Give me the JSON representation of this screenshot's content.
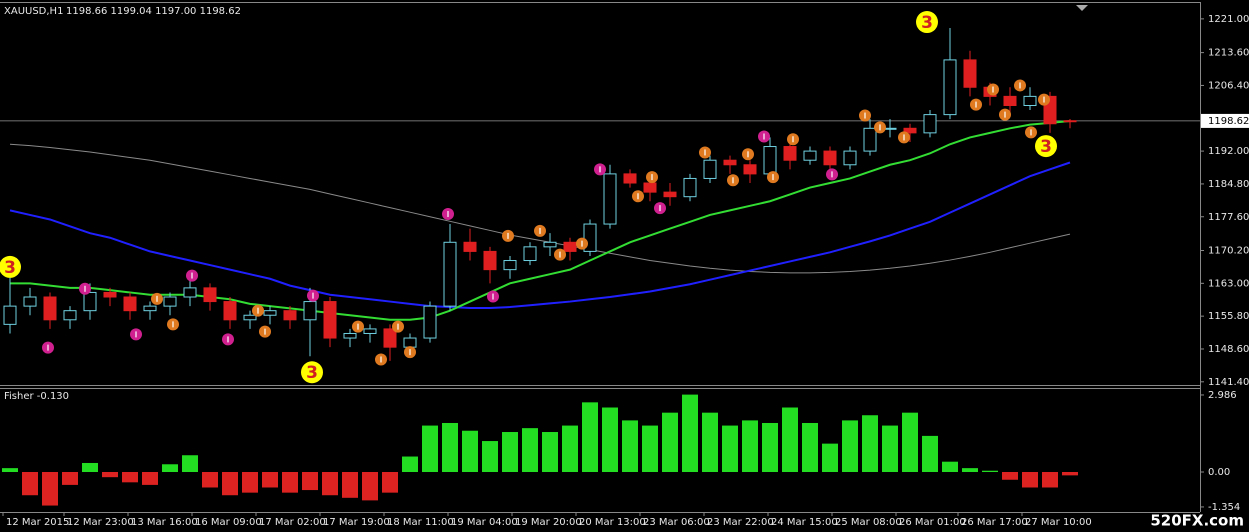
{
  "chart_data": [
    {
      "type": "candlestick",
      "symbol": "XAUUSD,H1",
      "ohlc_label": "1198.66 1199.04 1197.00 1198.62",
      "current_price": 1198.62,
      "up_color": "#6fd0e0",
      "down_color": "#e02020",
      "xlim": [
        -0.5,
        59.5
      ],
      "xticks": [
        {
          "value": -0.35,
          "label": "12 Mar 2015"
        },
        {
          "value": 2.7,
          "label": "12 Mar 23:00"
        },
        {
          "value": 5.9,
          "label": "13 Mar 16:00"
        },
        {
          "value": 9.1,
          "label": "16 Mar 09:00"
        },
        {
          "value": 12.3,
          "label": "17 Mar 02:00"
        },
        {
          "value": 15.5,
          "label": "17 Mar 19:00"
        },
        {
          "value": 18.7,
          "label": "18 Mar 11:00"
        },
        {
          "value": 21.9,
          "label": "19 Mar 04:00"
        },
        {
          "value": 25.1,
          "label": "19 Mar 20:00"
        },
        {
          "value": 28.3,
          "label": "20 Mar 13:00"
        },
        {
          "value": 31.5,
          "label": "23 Mar 06:00"
        },
        {
          "value": 34.7,
          "label": "23 Mar 22:00"
        },
        {
          "value": 37.9,
          "label": "24 Mar 15:00"
        },
        {
          "value": 41.1,
          "label": "25 Mar 08:00"
        },
        {
          "value": 44.3,
          "label": "26 Mar 01:00"
        },
        {
          "value": 47.4,
          "label": "26 Mar 17:00"
        },
        {
          "value": 50.6,
          "label": "27 Mar 10:00"
        }
      ],
      "ylim": [
        1140.7,
        1224.7
      ],
      "yticks": [
        {
          "value": 1221,
          "label": "1221.00"
        },
        {
          "value": 1213.6,
          "label": "1213.60"
        },
        {
          "value": 1206.4,
          "label": "1206.40"
        },
        {
          "value": 1192,
          "label": "1192.00"
        },
        {
          "value": 1184.8,
          "label": "1184.80"
        },
        {
          "value": 1177.6,
          "label": "1177.60"
        },
        {
          "value": 1170.2,
          "label": "1170.20"
        },
        {
          "value": 1163,
          "label": "1163.00"
        },
        {
          "value": 1155.8,
          "label": "1155.80"
        },
        {
          "value": 1148.6,
          "label": "1148.60"
        },
        {
          "value": 1141.4,
          "label": "1141.40"
        }
      ],
      "open": [
        1154,
        1158,
        1160,
        1155,
        1157,
        1161,
        1160,
        1157,
        1158,
        1160,
        1162,
        1159,
        1155,
        1156,
        1157,
        1155,
        1159,
        1151,
        1152,
        1153,
        1149,
        1151,
        1158,
        1172,
        1170,
        1166,
        1168,
        1171,
        1172,
        1170,
        1176,
        1187,
        1185,
        1183,
        1182,
        1186,
        1190,
        1189,
        1187,
        1193,
        1190,
        1192,
        1189,
        1192,
        1197,
        1197,
        1196,
        1200,
        1212,
        1206,
        1204,
        1202,
        1204,
        1198.66
      ],
      "high": [
        1165,
        1162,
        1161,
        1158,
        1163,
        1162,
        1161,
        1159,
        1161,
        1164,
        1163,
        1160,
        1157,
        1158,
        1158,
        1162,
        1160,
        1153,
        1154,
        1154,
        1152,
        1159,
        1176,
        1175,
        1171,
        1169,
        1172,
        1174,
        1173,
        1177,
        1189,
        1188,
        1186,
        1185,
        1187,
        1191,
        1191,
        1190,
        1195,
        1194,
        1193,
        1193,
        1193,
        1199,
        1199,
        1198,
        1201,
        1219,
        1214,
        1207,
        1206,
        1206,
        1205,
        1199.04
      ],
      "low": [
        1152,
        1156,
        1153,
        1153,
        1155,
        1158,
        1155,
        1155,
        1156,
        1158,
        1157,
        1153,
        1153,
        1154,
        1153,
        1147,
        1149,
        1149,
        1150,
        1146,
        1147,
        1150,
        1157,
        1168,
        1163,
        1164,
        1167,
        1169,
        1168,
        1169,
        1175,
        1184,
        1181,
        1180,
        1181,
        1185,
        1187,
        1185,
        1186,
        1188,
        1189,
        1187,
        1188,
        1191,
        1195,
        1194,
        1195,
        1199,
        1204,
        1202,
        1200,
        1201,
        1196,
        1197
      ],
      "close": [
        1158,
        1160,
        1155,
        1157,
        1161,
        1160,
        1157,
        1158,
        1160,
        1162,
        1159,
        1155,
        1156,
        1157,
        1155,
        1159,
        1151,
        1152,
        1153,
        1149,
        1151,
        1158,
        1172,
        1170,
        1166,
        1168,
        1171,
        1172,
        1170,
        1176,
        1187,
        1185,
        1183,
        1182,
        1186,
        1190,
        1189,
        1187,
        1193,
        1190,
        1192,
        1189,
        1192,
        1197,
        1197,
        1196,
        1200,
        1212,
        1206,
        1204,
        1202,
        1204,
        1198,
        1198.62
      ],
      "lines": [
        {
          "color": "#8a8a8a",
          "values": [
            1193.5,
            1193.2,
            1192.8,
            1192.3,
            1191.8,
            1191.2,
            1190.6,
            1190,
            1189.2,
            1188.4,
            1187.6,
            1186.8,
            1186,
            1185.2,
            1184.4,
            1183.6,
            1182.6,
            1181.6,
            1180.6,
            1179.6,
            1178.6,
            1177.6,
            1176.6,
            1175.6,
            1174.6,
            1173.6,
            1172.8,
            1172,
            1171.2,
            1170.4,
            1169.6,
            1168.8,
            1168,
            1167.4,
            1166.8,
            1166.3,
            1165.9,
            1165.6,
            1165.4,
            1165.3,
            1165.3,
            1165.4,
            1165.6,
            1165.9,
            1166.3,
            1166.8,
            1167.4,
            1168.1,
            1168.9,
            1169.8,
            1170.8,
            1171.8,
            1172.8,
            1173.8
          ]
        },
        {
          "color": "#2020ff",
          "values": [
            1179,
            1178,
            1177,
            1175.5,
            1174,
            1173,
            1171.5,
            1170,
            1169,
            1168,
            1167,
            1166,
            1165,
            1164,
            1162.5,
            1161.5,
            1160.5,
            1160,
            1159.5,
            1159,
            1158.5,
            1158,
            1157.8,
            1157.6,
            1157.6,
            1157.8,
            1158.2,
            1158.6,
            1159,
            1159.5,
            1160,
            1160.6,
            1161.2,
            1162,
            1162.8,
            1163.8,
            1164.8,
            1165.8,
            1166.8,
            1167.8,
            1168.8,
            1169.8,
            1171,
            1172.2,
            1173.5,
            1175,
            1176.5,
            1178.5,
            1180.5,
            1182.5,
            1184.5,
            1186.5,
            1188,
            1189.5
          ]
        },
        {
          "color": "#33dd33",
          "values": [
            1163,
            1163,
            1162.5,
            1162,
            1162,
            1161.5,
            1161,
            1160.5,
            1160.5,
            1160.5,
            1160,
            1159.5,
            1158.5,
            1158,
            1157.5,
            1157,
            1156.5,
            1156,
            1155.5,
            1155,
            1155,
            1155.5,
            1157,
            1159,
            1161,
            1163,
            1164,
            1165,
            1166,
            1168,
            1170,
            1172,
            1173.5,
            1175,
            1176.5,
            1178,
            1179,
            1180,
            1181,
            1182.5,
            1184,
            1185,
            1186,
            1187.5,
            1189,
            1190,
            1191.5,
            1193.5,
            1195,
            1196,
            1197,
            1197.8,
            1198.2,
            1198.6
          ]
        }
      ],
      "signals": [
        {
          "index": 1.9,
          "price": 1148.9,
          "color": "#d02090"
        },
        {
          "index": 3.75,
          "price": 1161.8,
          "color": "#d02090"
        },
        {
          "index": 6.3,
          "price": 1151.8,
          "color": "#d02090"
        },
        {
          "index": 9.1,
          "price": 1164.7,
          "color": "#d02090"
        },
        {
          "index": 10.9,
          "price": 1150.7,
          "color": "#d02090"
        },
        {
          "index": 15.15,
          "price": 1160.3,
          "color": "#d02090"
        },
        {
          "index": 21.9,
          "price": 1178.2,
          "color": "#d02090"
        },
        {
          "index": 24.15,
          "price": 1160.1,
          "color": "#d02090"
        },
        {
          "index": 29.5,
          "price": 1188,
          "color": "#d02090"
        },
        {
          "index": 32.5,
          "price": 1179.5,
          "color": "#d02090"
        },
        {
          "index": 37.7,
          "price": 1195.2,
          "color": "#d02090"
        },
        {
          "index": 41.1,
          "price": 1186.9,
          "color": "#d02090"
        },
        {
          "index": 7.35,
          "price": 1159.6,
          "color": "#e07a20"
        },
        {
          "index": 8.15,
          "price": 1154,
          "color": "#e07a20"
        },
        {
          "index": 12.4,
          "price": 1157,
          "color": "#e07a20"
        },
        {
          "index": 12.75,
          "price": 1152.4,
          "color": "#e07a20"
        },
        {
          "index": 17.4,
          "price": 1153.5,
          "color": "#e07a20"
        },
        {
          "index": 18.55,
          "price": 1146.3,
          "color": "#e07a20"
        },
        {
          "index": 19.4,
          "price": 1153.5,
          "color": "#e07a20"
        },
        {
          "index": 20,
          "price": 1147.9,
          "color": "#e07a20"
        },
        {
          "index": 24.9,
          "price": 1173.4,
          "color": "#e07a20"
        },
        {
          "index": 26.5,
          "price": 1174.5,
          "color": "#e07a20"
        },
        {
          "index": 27.5,
          "price": 1169.3,
          "color": "#e07a20"
        },
        {
          "index": 28.6,
          "price": 1171.7,
          "color": "#e07a20"
        },
        {
          "index": 31.4,
          "price": 1182.1,
          "color": "#e07a20"
        },
        {
          "index": 32.1,
          "price": 1186.3,
          "color": "#e07a20"
        },
        {
          "index": 34.75,
          "price": 1191.7,
          "color": "#e07a20"
        },
        {
          "index": 36.15,
          "price": 1185.6,
          "color": "#e07a20"
        },
        {
          "index": 36.9,
          "price": 1191.3,
          "color": "#e07a20"
        },
        {
          "index": 38.15,
          "price": 1186.3,
          "color": "#e07a20"
        },
        {
          "index": 39.15,
          "price": 1194.6,
          "color": "#e07a20"
        },
        {
          "index": 42.75,
          "price": 1199.8,
          "color": "#e07a20"
        },
        {
          "index": 43.5,
          "price": 1197.2,
          "color": "#e07a20"
        },
        {
          "index": 44.7,
          "price": 1195,
          "color": "#e07a20"
        },
        {
          "index": 48.3,
          "price": 1202.2,
          "color": "#e07a20"
        },
        {
          "index": 49.15,
          "price": 1205.5,
          "color": "#e07a20"
        },
        {
          "index": 49.75,
          "price": 1200,
          "color": "#e07a20"
        },
        {
          "index": 50.5,
          "price": 1206.4,
          "color": "#e07a20"
        },
        {
          "index": 51.05,
          "price": 1196.1,
          "color": "#e07a20"
        },
        {
          "index": 51.7,
          "price": 1203.3,
          "color": "#e07a20"
        }
      ],
      "wave_labels": [
        {
          "text": "3",
          "index": -0.1,
          "price": 1166.6
        },
        {
          "text": "3",
          "index": 15.1,
          "price": 1143.5
        },
        {
          "text": "3",
          "index": 45.85,
          "price": 1220.3
        },
        {
          "text": "3",
          "index": 51.8,
          "price": 1193.1
        }
      ],
      "watermark": "520FX.com"
    },
    {
      "type": "histogram",
      "title": "Fisher -0.130",
      "up_color": "#22dd22",
      "down_color": "#dd2222",
      "xlim": [
        -0.5,
        59.5
      ],
      "ylim": [
        -1.55,
        3.256
      ],
      "yticks": [
        2.986,
        {
          "value": 0,
          "label": "0.00"
        },
        -1.354
      ],
      "values": [
        0.15,
        -0.9,
        -1.3,
        -0.5,
        0.35,
        -0.2,
        -0.4,
        -0.5,
        0.3,
        0.65,
        -0.6,
        -0.9,
        -0.8,
        -0.6,
        -0.8,
        -0.7,
        -0.9,
        -1.0,
        -1.1,
        -0.8,
        0.6,
        1.8,
        1.9,
        1.6,
        1.2,
        1.55,
        1.7,
        1.55,
        1.8,
        2.7,
        2.5,
        2.0,
        1.8,
        2.3,
        3.0,
        2.3,
        1.8,
        2.0,
        1.9,
        2.5,
        1.9,
        1.1,
        2.0,
        2.2,
        1.8,
        2.3,
        1.4,
        0.4,
        0.15,
        0.05,
        -0.3,
        -0.6,
        -0.6,
        -0.13
      ]
    }
  ]
}
